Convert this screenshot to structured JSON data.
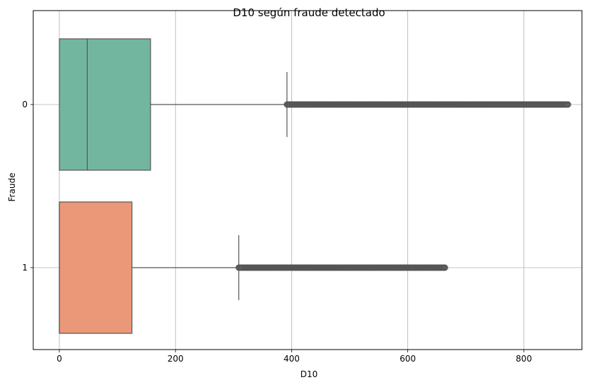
{
  "chart_data": {
    "type": "boxplot",
    "orientation": "horizontal",
    "title": "D10 según fraude detectado",
    "xlabel": "D10",
    "ylabel": "Fraude",
    "xlim": [
      -45,
      900
    ],
    "xticks": [
      0,
      200,
      400,
      600,
      800
    ],
    "grid": true,
    "categories": [
      "0",
      "1"
    ],
    "boxes": [
      {
        "category": "0",
        "color": "#73b6a0",
        "whisker_low": 0,
        "q1": 0,
        "median": 48,
        "q3": 157,
        "whisker_high": 392,
        "outlier_range": [
          392,
          876
        ]
      },
      {
        "category": "1",
        "color": "#ea9877",
        "whisker_low": 0,
        "q1": 0,
        "median": 0,
        "q3": 125,
        "whisker_high": 309,
        "outlier_range": [
          309,
          664
        ]
      }
    ]
  }
}
